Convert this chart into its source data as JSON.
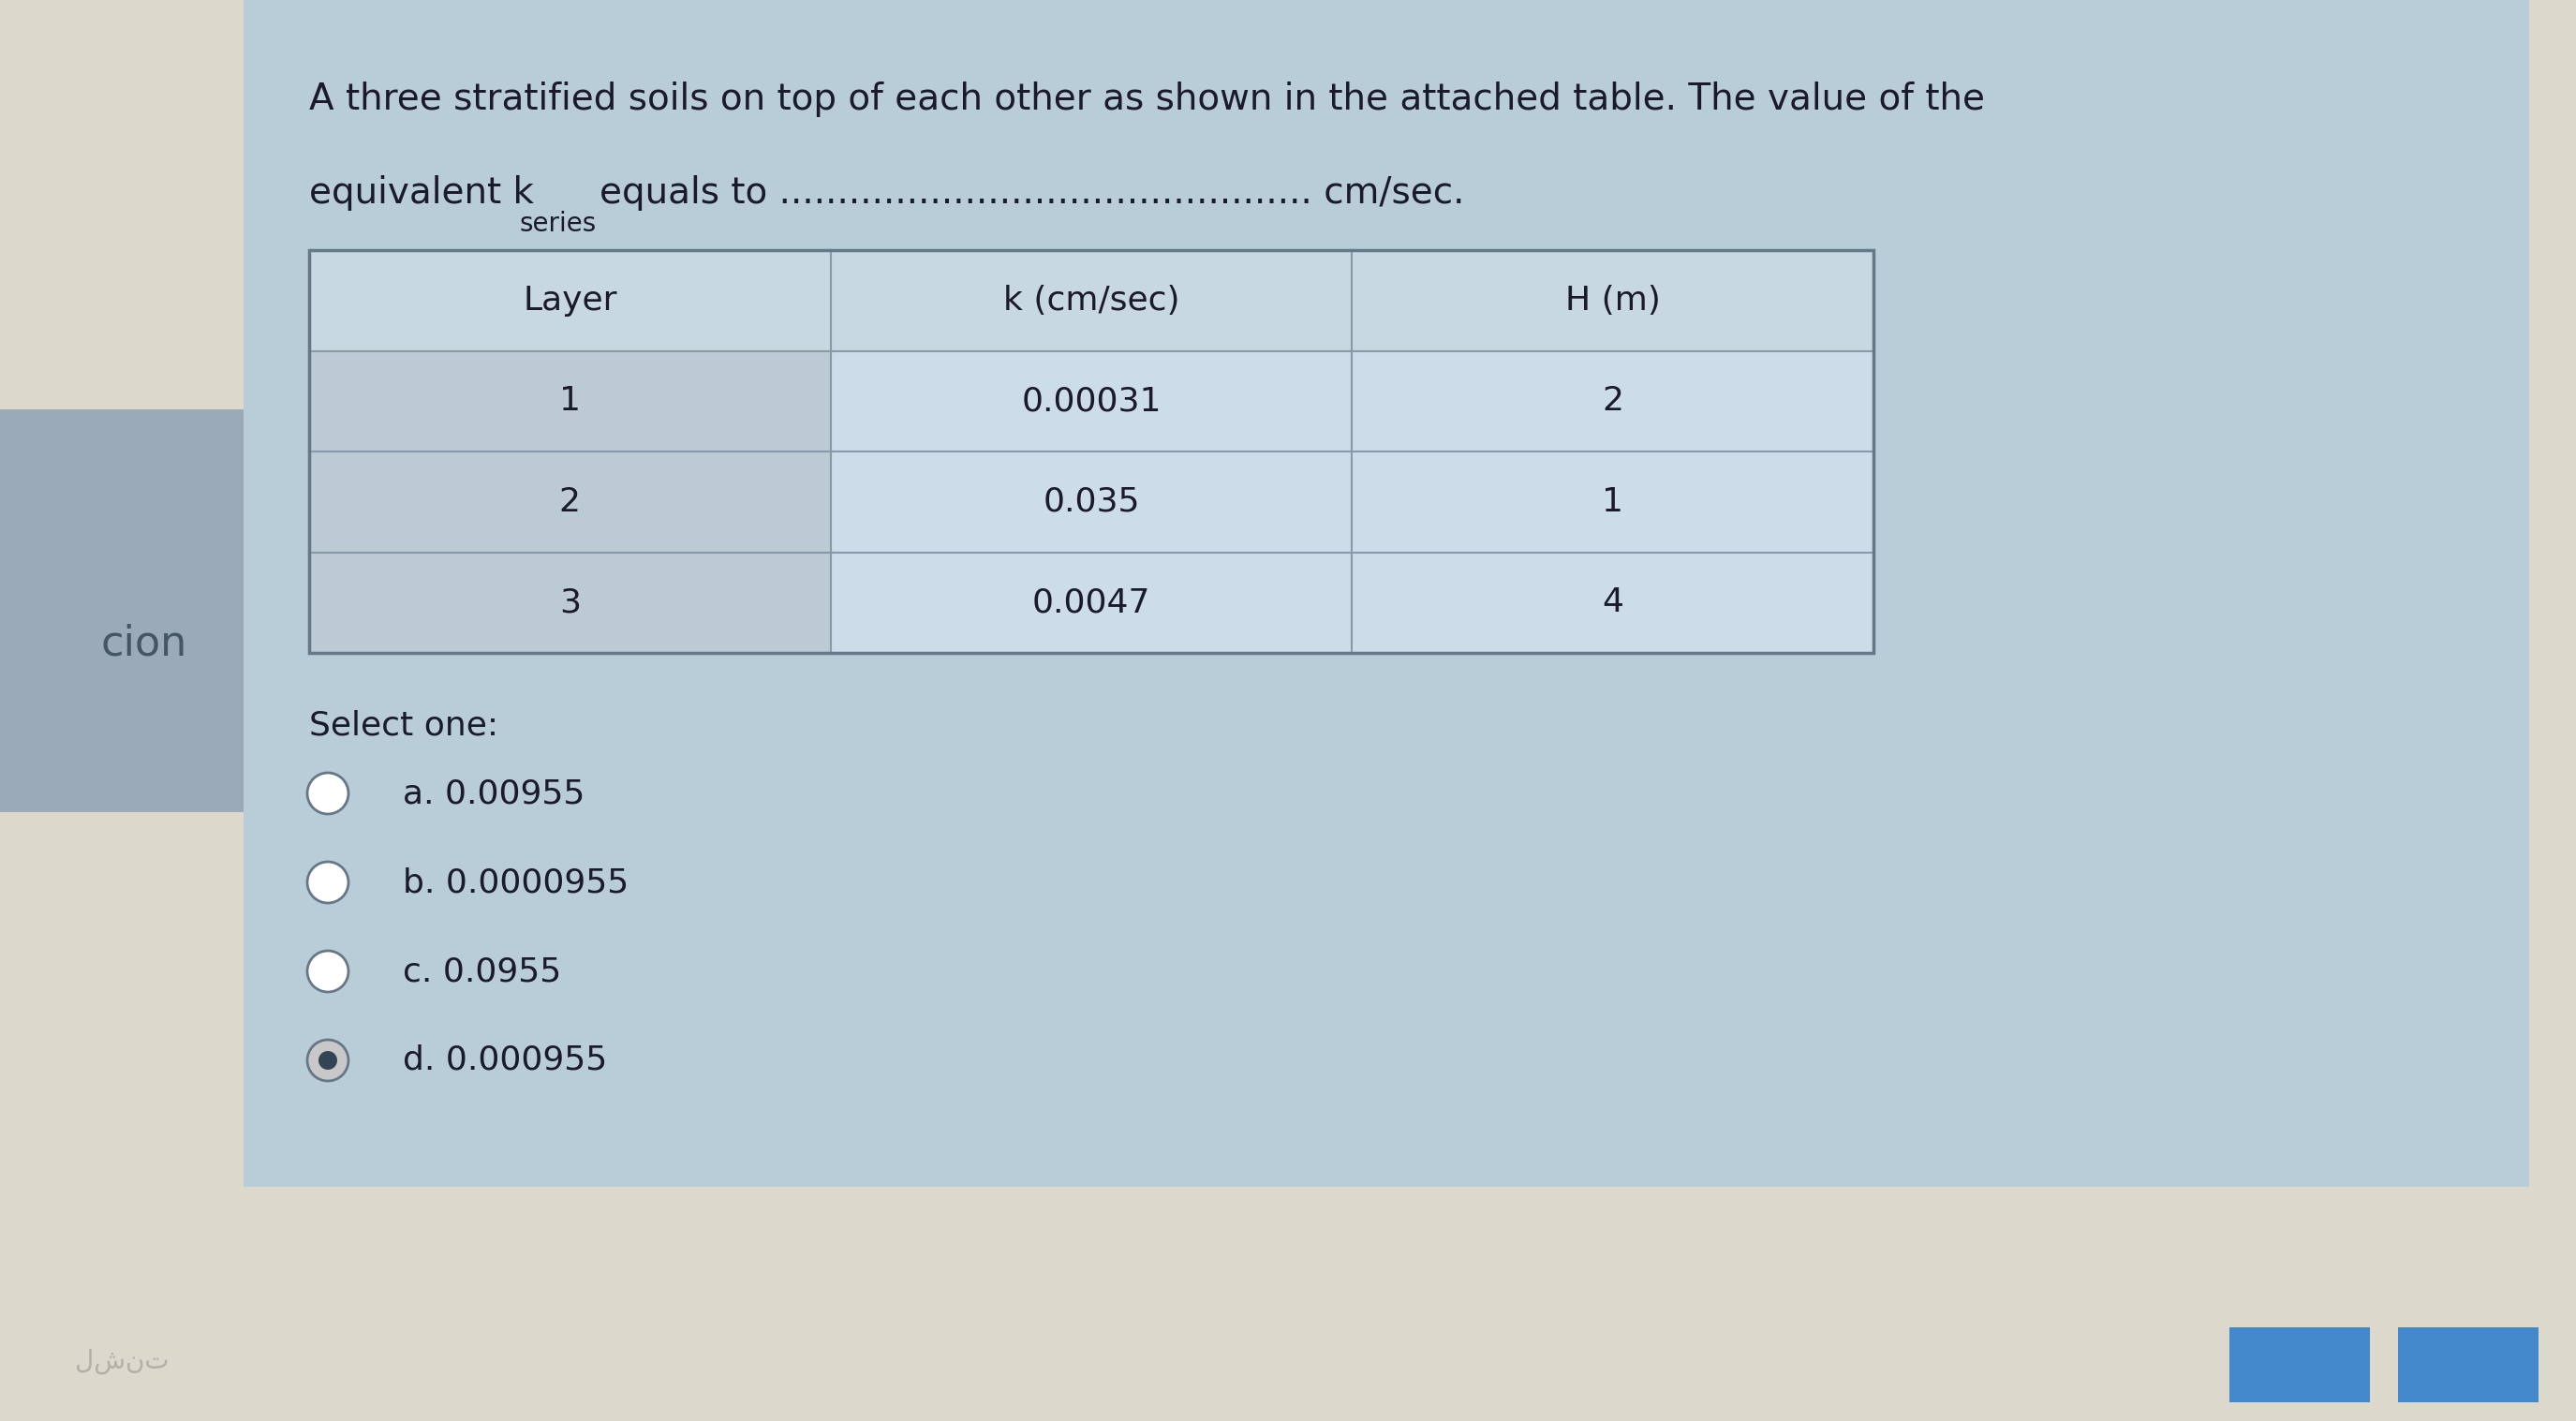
{
  "title_line1": "A three stratified soils on top of each other as shown in the attached table. The value of the",
  "title_line2_part1": "equivalent k",
  "title_subscript": "series",
  "title_line2_part2": "equals to .............................................. cm/sec.",
  "table_headers": [
    "Layer",
    "k (cm/sec)",
    "H (m)"
  ],
  "table_rows": [
    [
      "1",
      "0.00031",
      "2"
    ],
    [
      "2",
      "0.035",
      "1"
    ],
    [
      "3",
      "0.0047",
      "4"
    ]
  ],
  "select_one_label": "Select one:",
  "options": [
    "a. 0.00955",
    "b. 0.0000955",
    "c. 0.0955",
    "d. 0.000955"
  ],
  "selected_option_index": 3,
  "outer_bg_color": "#ddd8cc",
  "content_bg_color": "#b8cdd8",
  "left_panel_color": "#9aaab8",
  "table_header_bg": "#c8d8e0",
  "table_col1_bg": "#bccad4",
  "table_data_bg": "#ccdce8",
  "table_border_color": "#8899aa",
  "white_panel_bg": "#f0f4f6",
  "text_color": "#1a1a2a",
  "font_size_title": 28,
  "font_size_table": 26,
  "font_size_options": 26,
  "button_color": "#4488cc"
}
